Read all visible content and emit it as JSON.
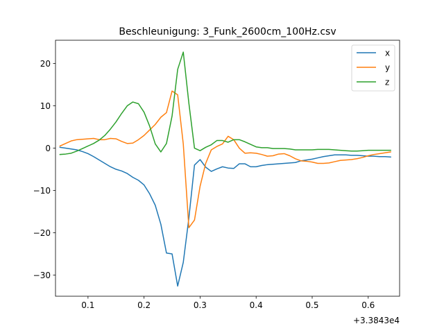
{
  "chart_data": {
    "type": "line",
    "title": "Beschleunigung: 3_Funk_2600cm_100Hz.csv",
    "xlabel": "",
    "ylabel": "",
    "x_offset_text": "+3.3843e4",
    "xlim": [
      0.042,
      0.656
    ],
    "ylim": [
      -35.0,
      25.5
    ],
    "x_ticks": [
      0.1,
      0.2,
      0.3,
      0.4,
      0.5,
      0.6
    ],
    "x_tick_labels": [
      "0.1",
      "0.2",
      "0.3",
      "0.4",
      "0.5",
      "0.6"
    ],
    "y_ticks": [
      -30,
      -20,
      -10,
      0,
      10,
      20
    ],
    "y_tick_labels": [
      "−30",
      "−20",
      "−10",
      "0",
      "10",
      "20"
    ],
    "grid": false,
    "legend_position": "upper right",
    "x": [
      0.05,
      0.06,
      0.07,
      0.08,
      0.09,
      0.1,
      0.11,
      0.12,
      0.13,
      0.14,
      0.15,
      0.16,
      0.17,
      0.18,
      0.19,
      0.2,
      0.21,
      0.22,
      0.23,
      0.24,
      0.25,
      0.26,
      0.27,
      0.28,
      0.29,
      0.3,
      0.31,
      0.32,
      0.33,
      0.34,
      0.35,
      0.36,
      0.37,
      0.38,
      0.39,
      0.4,
      0.41,
      0.42,
      0.43,
      0.44,
      0.45,
      0.46,
      0.47,
      0.48,
      0.49,
      0.5,
      0.51,
      0.52,
      0.53,
      0.54,
      0.55,
      0.56,
      0.57,
      0.58,
      0.59,
      0.6,
      0.61,
      0.62,
      0.63,
      0.64
    ],
    "series": [
      {
        "name": "x",
        "color": "#1f77b4",
        "values": [
          0.2,
          0.0,
          -0.2,
          -0.4,
          -0.8,
          -1.3,
          -2.0,
          -2.8,
          -3.6,
          -4.4,
          -5.0,
          -5.4,
          -6.0,
          -6.9,
          -7.6,
          -8.7,
          -10.8,
          -13.5,
          -18.0,
          -24.8,
          -25.0,
          -32.6,
          -27.0,
          -16.5,
          -4.0,
          -2.7,
          -4.5,
          -5.5,
          -4.9,
          -4.4,
          -4.7,
          -4.8,
          -3.7,
          -3.7,
          -4.4,
          -4.4,
          -4.1,
          -3.9,
          -3.8,
          -3.7,
          -3.6,
          -3.5,
          -3.4,
          -3.0,
          -2.8,
          -2.6,
          -2.3,
          -2.0,
          -1.8,
          -1.6,
          -1.6,
          -1.6,
          -1.7,
          -1.7,
          -1.8,
          -1.9,
          -1.9,
          -2.0,
          -2.0,
          -2.1
        ]
      },
      {
        "name": "y",
        "color": "#ff7f0e",
        "values": [
          0.5,
          1.1,
          1.7,
          2.0,
          2.1,
          2.2,
          2.3,
          2.0,
          2.0,
          2.3,
          2.2,
          1.6,
          1.1,
          1.2,
          2.0,
          3.0,
          4.3,
          5.6,
          7.3,
          8.4,
          13.5,
          12.6,
          1.0,
          -18.8,
          -17.0,
          -9.0,
          -3.6,
          -0.4,
          0.4,
          1.0,
          2.8,
          2.0,
          0.0,
          -1.2,
          -1.1,
          -1.2,
          -1.5,
          -1.9,
          -1.8,
          -1.4,
          -1.3,
          -1.8,
          -2.5,
          -3.0,
          -3.1,
          -3.3,
          -3.6,
          -3.6,
          -3.5,
          -3.2,
          -2.9,
          -2.8,
          -2.7,
          -2.5,
          -2.2,
          -1.8,
          -1.5,
          -1.3,
          -1.1,
          -0.9
        ]
      },
      {
        "name": "z",
        "color": "#2ca02c",
        "values": [
          -1.5,
          -1.4,
          -1.2,
          -0.7,
          -0.1,
          0.5,
          1.1,
          1.9,
          3.0,
          4.5,
          6.2,
          8.2,
          10.0,
          10.9,
          10.5,
          8.5,
          5.2,
          1.0,
          -0.9,
          1.1,
          7.6,
          18.6,
          22.7,
          10.6,
          0.0,
          -0.6,
          0.2,
          0.8,
          1.8,
          1.8,
          1.4,
          2.0,
          2.0,
          1.5,
          0.9,
          0.3,
          0.1,
          0.1,
          -0.1,
          -0.1,
          -0.1,
          -0.2,
          -0.4,
          -0.4,
          -0.4,
          -0.4,
          -0.3,
          -0.3,
          -0.3,
          -0.4,
          -0.5,
          -0.6,
          -0.7,
          -0.7,
          -0.6,
          -0.5,
          -0.5,
          -0.5,
          -0.5,
          -0.5
        ]
      }
    ]
  }
}
